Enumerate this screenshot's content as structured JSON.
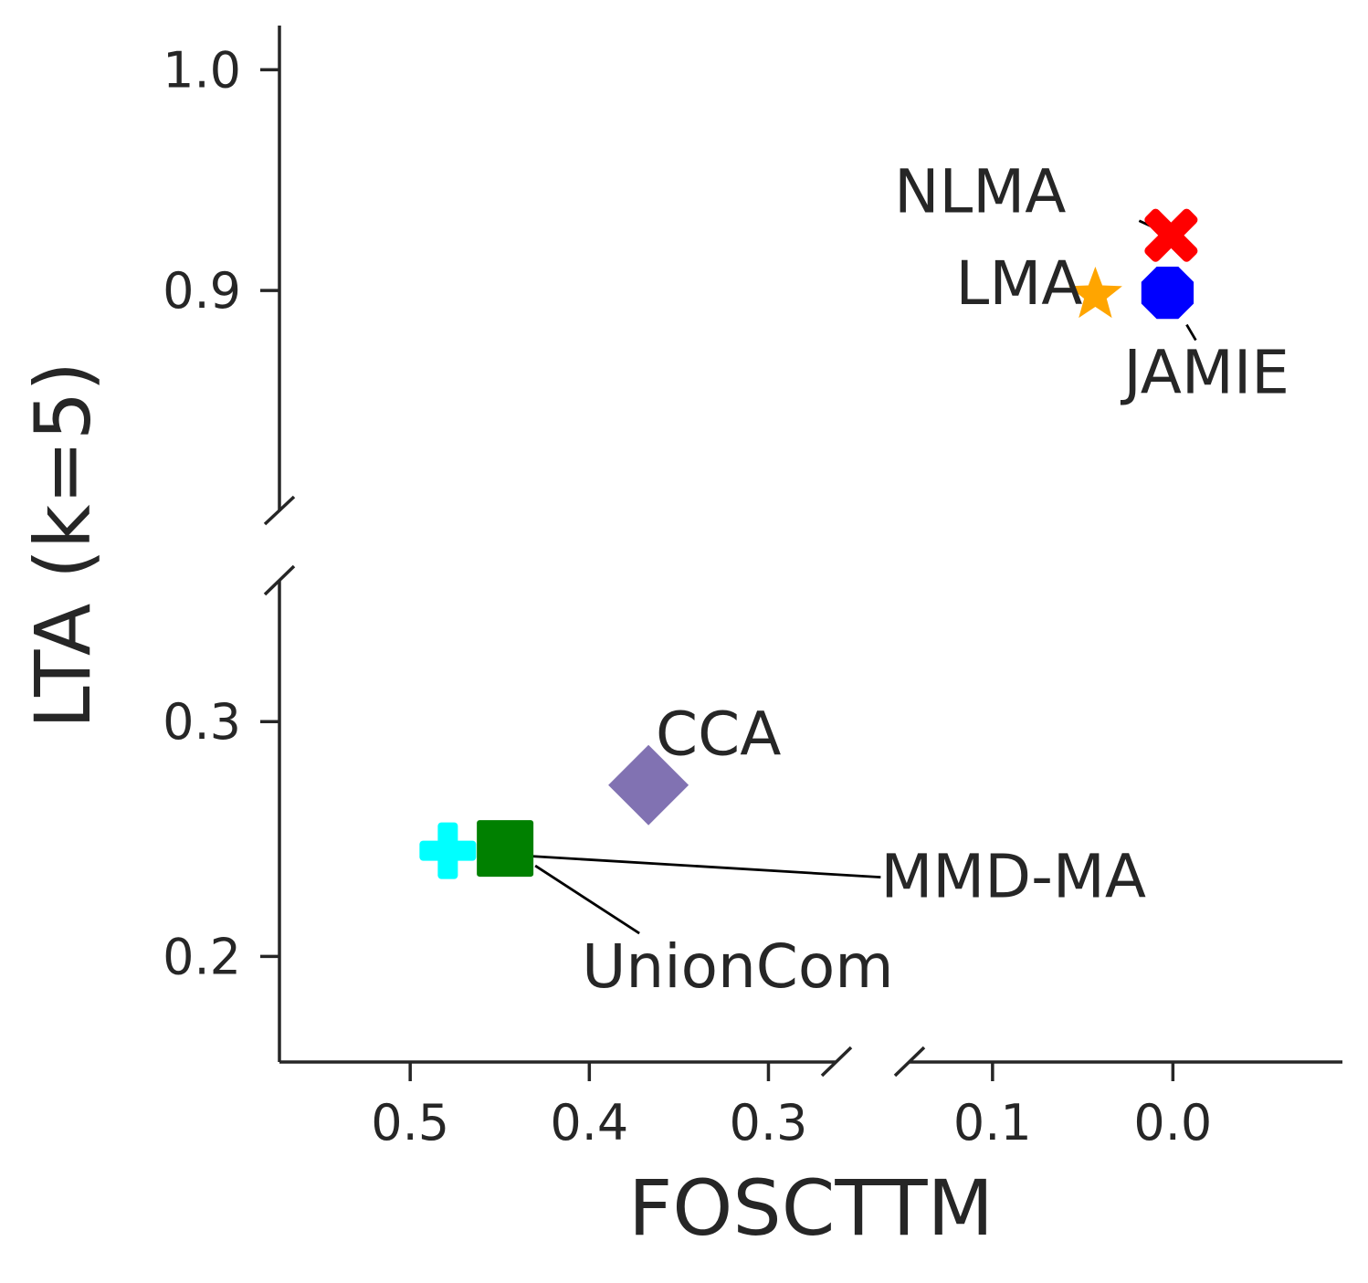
{
  "chart_data": {
    "type": "scatter",
    "xlabel": "FOSCTTM",
    "ylabel": "LTA (k=5)",
    "x_inverted": true,
    "x_broken_axis": true,
    "y_broken_axis": true,
    "x_segments": [
      {
        "range": [
          0.573,
          0.262
        ],
        "ticks": [
          0.5,
          0.4,
          0.3
        ],
        "tick_labels": [
          "0.5",
          "0.4",
          "0.3"
        ]
      },
      {
        "range": [
          0.146,
          -0.094
        ],
        "ticks": [
          0.1,
          0.0
        ],
        "tick_labels": [
          "0.1",
          "0.0"
        ]
      }
    ],
    "y_segments": [
      {
        "range": [
          0.8,
          1.02
        ],
        "ticks": [
          1.0,
          0.9
        ],
        "tick_labels": [
          "1.0",
          "0.9"
        ]
      },
      {
        "range": [
          0.155,
          0.36
        ],
        "ticks": [
          0.3,
          0.2
        ],
        "tick_labels": [
          "0.3",
          "0.2"
        ]
      }
    ],
    "points": [
      {
        "name": "NLMA",
        "x": 0.001,
        "y": 0.925,
        "marker": "x",
        "color": "#ff0000",
        "label_pos": "upper-left"
      },
      {
        "name": "LMA",
        "x": 0.043,
        "y": 0.898,
        "marker": "star",
        "color": "#ffa500",
        "label_pos": "left"
      },
      {
        "name": "JAMIE",
        "x": 0.003,
        "y": 0.899,
        "marker": "octagon",
        "color": "#0000ff",
        "label_pos": "below"
      },
      {
        "name": "CCA",
        "x": 0.367,
        "y": 0.273,
        "marker": "diamond",
        "color": "#8172b2",
        "label_pos": "upper-right"
      },
      {
        "name": "MMD-MA",
        "x": 0.479,
        "y": 0.245,
        "marker": "plus",
        "color": "#00ffff",
        "label_pos": "far-right"
      },
      {
        "name": "UnionCom",
        "x": 0.447,
        "y": 0.246,
        "marker": "square",
        "color": "#008000",
        "label_pos": "below-right"
      }
    ]
  }
}
